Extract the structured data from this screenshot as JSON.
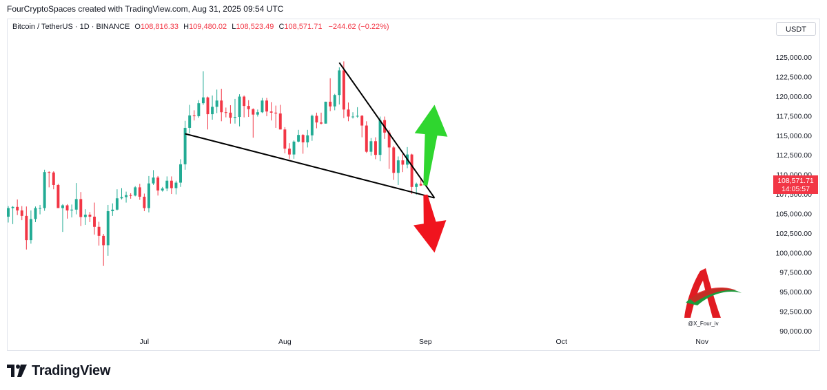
{
  "header": {
    "credit": "FourCryptoSpaces created with TradingView.com, Aug 31, 2025 09:54 UTC"
  },
  "legend": {
    "symbol": "Bitcoin / TetherUS · 1D · BINANCE",
    "o_label": "O",
    "o_value": "108,816.33",
    "h_label": "H",
    "h_value": "109,480.02",
    "l_label": "L",
    "l_value": "108,523.49",
    "c_label": "C",
    "c_value": "108,571.71",
    "change": "−244.62 (−0.22%)"
  },
  "currency_button": "USDT",
  "price_tag": {
    "price": "108,571.71",
    "countdown": "14:05:57",
    "color": "#f23645"
  },
  "footer": {
    "brand": "TradingView"
  },
  "watermark": {
    "handle": "@X_Four_iv"
  },
  "colors": {
    "up": "#22ab94",
    "down": "#f23645",
    "green_arrow": "#2fd62f",
    "red_arrow": "#f0141e",
    "pattern_lines": "#000000"
  },
  "chart_data": {
    "type": "candlestick",
    "title": "",
    "xlabel": "",
    "ylabel": "",
    "ylim": [
      90000,
      126500
    ],
    "y_ticks": [
      "125,000.00",
      "122,500.00",
      "120,000.00",
      "117,500.00",
      "115,000.00",
      "112,500.00",
      "110,000.00",
      "107,500.00",
      "105,000.00",
      "102,500.00",
      "100,000.00",
      "97,500.00",
      "95,000.00",
      "92,500.00",
      "90,000.00"
    ],
    "y_tick_values": [
      125000,
      122500,
      120000,
      117500,
      115000,
      112500,
      110000,
      107500,
      105000,
      102500,
      100000,
      97500,
      95000,
      92500,
      90000
    ],
    "x_tick_labels": [
      "Jul",
      "Aug",
      "Sep",
      "Oct",
      "Nov"
    ],
    "x_tick_dates": [
      "2025-07-01",
      "2025-08-01",
      "2025-09-01",
      "2025-10-01",
      "2025-11-01"
    ],
    "x_range": [
      "2025-06-01",
      "2025-11-05"
    ],
    "grid": false,
    "candles": [
      {
        "date": "2025-06-01",
        "o": 104600,
        "h": 105950,
        "l": 103850,
        "c": 105700
      },
      {
        "date": "2025-06-02",
        "o": 105700,
        "h": 105950,
        "l": 103650,
        "c": 105850
      },
      {
        "date": "2025-06-03",
        "o": 105850,
        "h": 106800,
        "l": 104800,
        "c": 105400
      },
      {
        "date": "2025-06-04",
        "o": 105400,
        "h": 105950,
        "l": 104150,
        "c": 104700
      },
      {
        "date": "2025-06-05",
        "o": 104700,
        "h": 105900,
        "l": 100400,
        "c": 101600
      },
      {
        "date": "2025-06-06",
        "o": 101600,
        "h": 105400,
        "l": 101150,
        "c": 104300
      },
      {
        "date": "2025-06-07",
        "o": 104300,
        "h": 105900,
        "l": 103900,
        "c": 105700
      },
      {
        "date": "2025-06-08",
        "o": 105700,
        "h": 106100,
        "l": 104900,
        "c": 105700
      },
      {
        "date": "2025-06-09",
        "o": 105700,
        "h": 110600,
        "l": 105350,
        "c": 110300
      },
      {
        "date": "2025-06-10",
        "o": 110300,
        "h": 110400,
        "l": 108350,
        "c": 110250
      },
      {
        "date": "2025-06-11",
        "o": 110250,
        "h": 110400,
        "l": 108100,
        "c": 108650
      },
      {
        "date": "2025-06-12",
        "o": 108650,
        "h": 108800,
        "l": 105700,
        "c": 105700
      },
      {
        "date": "2025-06-13",
        "o": 105700,
        "h": 106200,
        "l": 102650,
        "c": 106050
      },
      {
        "date": "2025-06-14",
        "o": 106050,
        "h": 106200,
        "l": 104350,
        "c": 105400
      },
      {
        "date": "2025-06-15",
        "o": 105400,
        "h": 106150,
        "l": 104500,
        "c": 105500
      },
      {
        "date": "2025-06-16",
        "o": 105500,
        "h": 108900,
        "l": 104900,
        "c": 106850
      },
      {
        "date": "2025-06-17",
        "o": 106850,
        "h": 107750,
        "l": 103400,
        "c": 104550
      },
      {
        "date": "2025-06-18",
        "o": 104550,
        "h": 105550,
        "l": 103550,
        "c": 104850
      },
      {
        "date": "2025-06-19",
        "o": 104850,
        "h": 105200,
        "l": 103900,
        "c": 104600
      },
      {
        "date": "2025-06-20",
        "o": 104600,
        "h": 106400,
        "l": 102300,
        "c": 103300
      },
      {
        "date": "2025-06-21",
        "o": 103300,
        "h": 103950,
        "l": 100900,
        "c": 102150
      },
      {
        "date": "2025-06-22",
        "o": 102150,
        "h": 102400,
        "l": 98300,
        "c": 100950
      },
      {
        "date": "2025-06-23",
        "o": 100950,
        "h": 106100,
        "l": 99600,
        "c": 105300
      },
      {
        "date": "2025-06-24",
        "o": 105300,
        "h": 106300,
        "l": 104700,
        "c": 105500
      },
      {
        "date": "2025-06-25",
        "o": 105500,
        "h": 108100,
        "l": 105400,
        "c": 106950
      },
      {
        "date": "2025-06-26",
        "o": 106950,
        "h": 108250,
        "l": 106800,
        "c": 107100
      },
      {
        "date": "2025-06-27",
        "o": 107100,
        "h": 107800,
        "l": 106400,
        "c": 107350
      },
      {
        "date": "2025-06-28",
        "o": 107350,
        "h": 107600,
        "l": 106900,
        "c": 107300
      },
      {
        "date": "2025-06-29",
        "o": 107300,
        "h": 108500,
        "l": 107200,
        "c": 108350
      },
      {
        "date": "2025-06-30",
        "o": 108350,
        "h": 108800,
        "l": 106750,
        "c": 107150
      },
      {
        "date": "2025-07-01",
        "o": 107150,
        "h": 107550,
        "l": 105300,
        "c": 105700
      },
      {
        "date": "2025-07-02",
        "o": 105700,
        "h": 109800,
        "l": 105150,
        "c": 108850
      },
      {
        "date": "2025-07-03",
        "o": 108850,
        "h": 110550,
        "l": 108650,
        "c": 109600
      },
      {
        "date": "2025-07-04",
        "o": 109600,
        "h": 109800,
        "l": 107300,
        "c": 107950
      },
      {
        "date": "2025-07-05",
        "o": 107950,
        "h": 108400,
        "l": 107800,
        "c": 108200
      },
      {
        "date": "2025-07-06",
        "o": 108200,
        "h": 109750,
        "l": 107850,
        "c": 109200
      },
      {
        "date": "2025-07-07",
        "o": 109200,
        "h": 109750,
        "l": 107500,
        "c": 108250
      },
      {
        "date": "2025-07-08",
        "o": 108250,
        "h": 109200,
        "l": 107450,
        "c": 108950
      },
      {
        "date": "2025-07-09",
        "o": 108950,
        "h": 111950,
        "l": 108400,
        "c": 111300
      },
      {
        "date": "2025-07-10",
        "o": 111300,
        "h": 116850,
        "l": 110600,
        "c": 115950
      },
      {
        "date": "2025-07-11",
        "o": 115950,
        "h": 118900,
        "l": 115250,
        "c": 117550
      },
      {
        "date": "2025-07-12",
        "o": 117550,
        "h": 118200,
        "l": 116900,
        "c": 117450
      },
      {
        "date": "2025-07-13",
        "o": 117450,
        "h": 119500,
        "l": 117250,
        "c": 119100
      },
      {
        "date": "2025-07-14",
        "o": 119100,
        "h": 123200,
        "l": 118900,
        "c": 119850
      },
      {
        "date": "2025-07-15",
        "o": 119850,
        "h": 119950,
        "l": 115750,
        "c": 117700
      },
      {
        "date": "2025-07-16",
        "o": 117700,
        "h": 120100,
        "l": 117000,
        "c": 118650
      },
      {
        "date": "2025-07-17",
        "o": 118650,
        "h": 120850,
        "l": 117850,
        "c": 119450
      },
      {
        "date": "2025-07-18",
        "o": 119450,
        "h": 120950,
        "l": 116800,
        "c": 117950
      },
      {
        "date": "2025-07-19",
        "o": 117950,
        "h": 118550,
        "l": 117300,
        "c": 117900
      },
      {
        "date": "2025-07-20",
        "o": 117900,
        "h": 118850,
        "l": 116500,
        "c": 117250
      },
      {
        "date": "2025-07-21",
        "o": 117250,
        "h": 119650,
        "l": 116500,
        "c": 117350
      },
      {
        "date": "2025-07-22",
        "o": 117350,
        "h": 120250,
        "l": 116150,
        "c": 119950
      },
      {
        "date": "2025-07-23",
        "o": 119950,
        "h": 120100,
        "l": 117300,
        "c": 118750
      },
      {
        "date": "2025-07-24",
        "o": 118750,
        "h": 119500,
        "l": 117350,
        "c": 118350
      },
      {
        "date": "2025-07-25",
        "o": 118350,
        "h": 118450,
        "l": 114700,
        "c": 117650
      },
      {
        "date": "2025-07-26",
        "o": 117650,
        "h": 118300,
        "l": 117400,
        "c": 117950
      },
      {
        "date": "2025-07-27",
        "o": 117950,
        "h": 119800,
        "l": 117850,
        "c": 119450
      },
      {
        "date": "2025-07-28",
        "o": 119450,
        "h": 119800,
        "l": 117450,
        "c": 118050
      },
      {
        "date": "2025-07-29",
        "o": 118050,
        "h": 119250,
        "l": 116900,
        "c": 117900
      },
      {
        "date": "2025-07-30",
        "o": 117900,
        "h": 118800,
        "l": 115950,
        "c": 117800
      },
      {
        "date": "2025-07-31",
        "o": 117800,
        "h": 118900,
        "l": 115750,
        "c": 115750
      },
      {
        "date": "2025-08-01",
        "o": 115750,
        "h": 116050,
        "l": 112700,
        "c": 113300
      },
      {
        "date": "2025-08-02",
        "o": 113300,
        "h": 114000,
        "l": 112000,
        "c": 112550
      },
      {
        "date": "2025-08-03",
        "o": 112550,
        "h": 114350,
        "l": 112000,
        "c": 114200
      },
      {
        "date": "2025-08-04",
        "o": 114200,
        "h": 115700,
        "l": 114100,
        "c": 115050
      },
      {
        "date": "2025-08-05",
        "o": 115050,
        "h": 115150,
        "l": 112650,
        "c": 114100
      },
      {
        "date": "2025-08-06",
        "o": 114100,
        "h": 115700,
        "l": 113450,
        "c": 115000
      },
      {
        "date": "2025-08-07",
        "o": 115000,
        "h": 117650,
        "l": 114300,
        "c": 117500
      },
      {
        "date": "2025-08-08",
        "o": 117500,
        "h": 117900,
        "l": 115900,
        "c": 116650
      },
      {
        "date": "2025-08-09",
        "o": 116650,
        "h": 117900,
        "l": 116400,
        "c": 116500
      },
      {
        "date": "2025-08-10",
        "o": 116500,
        "h": 119300,
        "l": 116500,
        "c": 119300
      },
      {
        "date": "2025-08-11",
        "o": 119300,
        "h": 122300,
        "l": 118100,
        "c": 118700
      },
      {
        "date": "2025-08-12",
        "o": 118700,
        "h": 120300,
        "l": 118200,
        "c": 120150
      },
      {
        "date": "2025-08-13",
        "o": 120150,
        "h": 123700,
        "l": 118950,
        "c": 123300
      },
      {
        "date": "2025-08-14",
        "o": 123300,
        "h": 124450,
        "l": 117200,
        "c": 118300
      },
      {
        "date": "2025-08-15",
        "o": 118300,
        "h": 119200,
        "l": 116800,
        "c": 117400
      },
      {
        "date": "2025-08-16",
        "o": 117400,
        "h": 117950,
        "l": 117150,
        "c": 117400
      },
      {
        "date": "2025-08-17",
        "o": 117400,
        "h": 118600,
        "l": 117250,
        "c": 117500
      },
      {
        "date": "2025-08-18",
        "o": 117500,
        "h": 117600,
        "l": 114750,
        "c": 116250
      },
      {
        "date": "2025-08-19",
        "o": 116250,
        "h": 116800,
        "l": 112750,
        "c": 112900
      },
      {
        "date": "2025-08-20",
        "o": 112900,
        "h": 114650,
        "l": 112400,
        "c": 114250
      },
      {
        "date": "2025-08-21",
        "o": 114250,
        "h": 114750,
        "l": 111950,
        "c": 112500
      },
      {
        "date": "2025-08-22",
        "o": 112500,
        "h": 117400,
        "l": 111700,
        "c": 116950
      },
      {
        "date": "2025-08-23",
        "o": 116950,
        "h": 117400,
        "l": 114550,
        "c": 115350
      },
      {
        "date": "2025-08-24",
        "o": 115350,
        "h": 115700,
        "l": 110700,
        "c": 113450
      },
      {
        "date": "2025-08-25",
        "o": 113450,
        "h": 113650,
        "l": 109300,
        "c": 110200
      },
      {
        "date": "2025-08-26",
        "o": 110200,
        "h": 112300,
        "l": 108650,
        "c": 111800
      },
      {
        "date": "2025-08-27",
        "o": 111800,
        "h": 112600,
        "l": 110300,
        "c": 111250
      },
      {
        "date": "2025-08-28",
        "o": 111250,
        "h": 113500,
        "l": 110800,
        "c": 112550
      },
      {
        "date": "2025-08-29",
        "o": 112550,
        "h": 112650,
        "l": 107500,
        "c": 108400
      },
      {
        "date": "2025-08-30",
        "o": 108400,
        "h": 108950,
        "l": 107400,
        "c": 108800
      },
      {
        "date": "2025-08-31",
        "o": 108816.33,
        "h": 109480.02,
        "l": 108523.49,
        "c": 108571.71
      }
    ],
    "annotations": {
      "falling_wedge_upper_line": [
        [
          "2025-08-13",
          124300
        ],
        [
          "2025-09-03",
          107000
        ]
      ],
      "falling_wedge_lower_line": [
        [
          "2025-07-10",
          115200
        ],
        [
          "2025-09-03",
          107000
        ]
      ],
      "up_arrow": [
        [
          "2025-09-01",
          108600
        ],
        [
          "2025-09-03",
          118900
        ]
      ],
      "down_arrow": [
        [
          "2025-09-01",
          107400
        ],
        [
          "2025-09-03",
          100000
        ]
      ]
    }
  }
}
